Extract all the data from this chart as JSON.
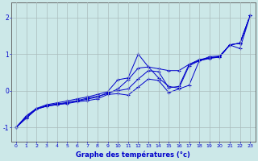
{
  "xlabel": "Graphe des températures (°c)",
  "bg_color": "#cce8e8",
  "line_color": "#0000cc",
  "grid_color": "#aabcbc",
  "xlim": [
    -0.5,
    23.5
  ],
  "ylim": [
    -1.4,
    2.4
  ],
  "yticks": [
    -1,
    0,
    1,
    2
  ],
  "xticks": [
    0,
    1,
    2,
    3,
    4,
    5,
    6,
    7,
    8,
    9,
    10,
    11,
    12,
    13,
    14,
    15,
    16,
    17,
    18,
    19,
    20,
    21,
    22,
    23
  ],
  "series": [
    {
      "x": [
        0,
        1,
        2,
        3,
        4,
        5,
        6,
        7,
        8,
        9,
        10,
        11,
        12,
        13,
        14,
        15,
        16,
        17,
        18,
        19,
        20,
        21,
        22,
        23
      ],
      "y": [
        -1.0,
        -0.75,
        -0.5,
        -0.42,
        -0.38,
        -0.35,
        -0.3,
        -0.27,
        -0.22,
        -0.1,
        -0.08,
        -0.12,
        0.1,
        0.32,
        0.28,
        -0.05,
        0.05,
        0.15,
        0.82,
        0.88,
        0.92,
        1.25,
        1.3,
        2.05
      ]
    },
    {
      "x": [
        0,
        1,
        2,
        3,
        4,
        5,
        6,
        7,
        8,
        9,
        10,
        11,
        12,
        13,
        14,
        15,
        16,
        17,
        18,
        19,
        20,
        21,
        22,
        23
      ],
      "y": [
        -1.0,
        -0.72,
        -0.5,
        -0.42,
        -0.38,
        -0.33,
        -0.28,
        -0.23,
        -0.17,
        -0.05,
        0.0,
        0.05,
        0.32,
        0.55,
        0.52,
        0.08,
        0.12,
        0.72,
        0.85,
        0.9,
        0.92,
        1.25,
        1.3,
        2.05
      ]
    },
    {
      "x": [
        0,
        1,
        2,
        3,
        4,
        5,
        6,
        7,
        8,
        9,
        10,
        11,
        12,
        13,
        14,
        15,
        16,
        17,
        18,
        19,
        20,
        21,
        22,
        23
      ],
      "y": [
        -1.0,
        -0.7,
        -0.5,
        -0.4,
        -0.36,
        -0.32,
        -0.27,
        -0.2,
        -0.15,
        -0.08,
        0.05,
        0.3,
        0.62,
        0.65,
        0.6,
        0.55,
        0.55,
        0.72,
        0.82,
        0.9,
        0.93,
        1.25,
        1.3,
        2.05
      ]
    },
    {
      "x": [
        0,
        1,
        2,
        3,
        4,
        5,
        6,
        7,
        8,
        9,
        10,
        11,
        12,
        13,
        14,
        15,
        16,
        17,
        18,
        19,
        20,
        21,
        22,
        23
      ],
      "y": [
        -1.0,
        -0.68,
        -0.48,
        -0.38,
        -0.33,
        -0.28,
        -0.22,
        -0.17,
        -0.1,
        -0.02,
        0.3,
        0.35,
        1.0,
        0.65,
        0.35,
        0.12,
        0.07,
        0.68,
        0.82,
        0.93,
        0.95,
        1.25,
        1.15,
        2.05
      ]
    }
  ]
}
